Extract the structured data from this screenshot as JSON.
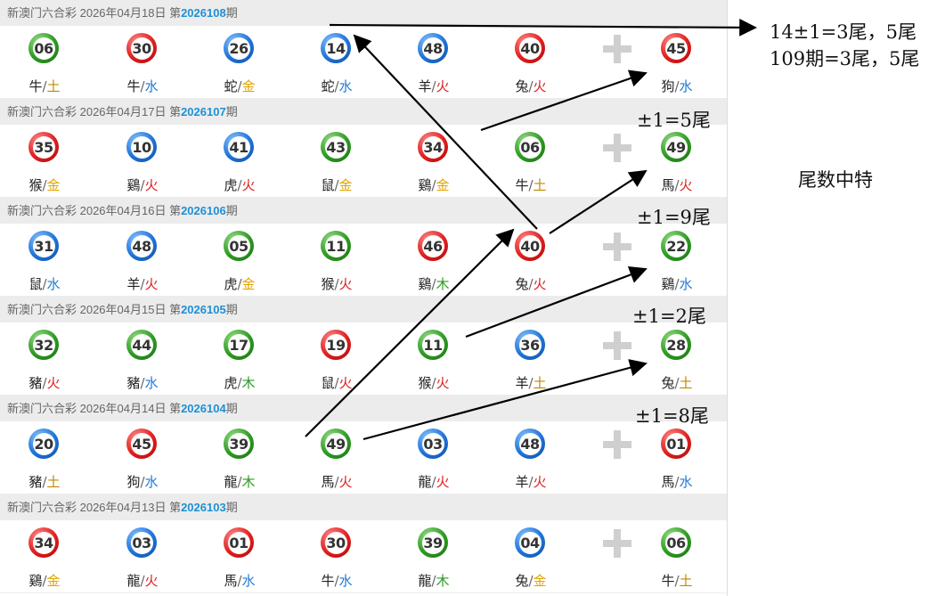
{
  "draws": [
    {
      "head_prefix": "新澳门六合彩 2026年04月18日 第",
      "issue": "2026108",
      "head_suffix": "期",
      "balls": [
        {
          "num": "06",
          "color": "green",
          "zodiac": "牛",
          "element": "土"
        },
        {
          "num": "30",
          "color": "red",
          "zodiac": "牛",
          "element": "水"
        },
        {
          "num": "26",
          "color": "blue",
          "zodiac": "蛇",
          "element": "金"
        },
        {
          "num": "14",
          "color": "blue",
          "zodiac": "蛇",
          "element": "水"
        },
        {
          "num": "48",
          "color": "blue",
          "zodiac": "羊",
          "element": "火"
        },
        {
          "num": "40",
          "color": "red",
          "zodiac": "兔",
          "element": "火"
        },
        {
          "num": "45",
          "color": "red",
          "zodiac": "狗",
          "element": "水"
        }
      ]
    },
    {
      "head_prefix": "新澳门六合彩 2026年04月17日 第",
      "issue": "2026107",
      "head_suffix": "期",
      "balls": [
        {
          "num": "35",
          "color": "red",
          "zodiac": "猴",
          "element": "金"
        },
        {
          "num": "10",
          "color": "blue",
          "zodiac": "鷄",
          "element": "火"
        },
        {
          "num": "41",
          "color": "blue",
          "zodiac": "虎",
          "element": "火"
        },
        {
          "num": "43",
          "color": "green",
          "zodiac": "鼠",
          "element": "金"
        },
        {
          "num": "34",
          "color": "red",
          "zodiac": "鷄",
          "element": "金"
        },
        {
          "num": "06",
          "color": "green",
          "zodiac": "牛",
          "element": "土"
        },
        {
          "num": "49",
          "color": "green",
          "zodiac": "馬",
          "element": "火"
        }
      ]
    },
    {
      "head_prefix": "新澳门六合彩 2026年04月16日 第",
      "issue": "2026106",
      "head_suffix": "期",
      "balls": [
        {
          "num": "31",
          "color": "blue",
          "zodiac": "鼠",
          "element": "水"
        },
        {
          "num": "48",
          "color": "blue",
          "zodiac": "羊",
          "element": "火"
        },
        {
          "num": "05",
          "color": "green",
          "zodiac": "虎",
          "element": "金"
        },
        {
          "num": "11",
          "color": "green",
          "zodiac": "猴",
          "element": "火"
        },
        {
          "num": "46",
          "color": "red",
          "zodiac": "鷄",
          "element": "木"
        },
        {
          "num": "40",
          "color": "red",
          "zodiac": "兔",
          "element": "火"
        },
        {
          "num": "22",
          "color": "green",
          "zodiac": "鷄",
          "element": "水"
        }
      ]
    },
    {
      "head_prefix": "新澳门六合彩 2026年04月15日 第",
      "issue": "2026105",
      "head_suffix": "期",
      "balls": [
        {
          "num": "32",
          "color": "green",
          "zodiac": "豬",
          "element": "火"
        },
        {
          "num": "44",
          "color": "green",
          "zodiac": "豬",
          "element": "水"
        },
        {
          "num": "17",
          "color": "green",
          "zodiac": "虎",
          "element": "木"
        },
        {
          "num": "19",
          "color": "red",
          "zodiac": "鼠",
          "element": "火"
        },
        {
          "num": "11",
          "color": "green",
          "zodiac": "猴",
          "element": "火"
        },
        {
          "num": "36",
          "color": "blue",
          "zodiac": "羊",
          "element": "土"
        },
        {
          "num": "28",
          "color": "green",
          "zodiac": "兔",
          "element": "土"
        }
      ]
    },
    {
      "head_prefix": "新澳门六合彩 2026年04月14日 第",
      "issue": "2026104",
      "head_suffix": "期",
      "balls": [
        {
          "num": "20",
          "color": "blue",
          "zodiac": "豬",
          "element": "土"
        },
        {
          "num": "45",
          "color": "red",
          "zodiac": "狗",
          "element": "水"
        },
        {
          "num": "39",
          "color": "green",
          "zodiac": "龍",
          "element": "木"
        },
        {
          "num": "49",
          "color": "green",
          "zodiac": "馬",
          "element": "火"
        },
        {
          "num": "03",
          "color": "blue",
          "zodiac": "龍",
          "element": "火"
        },
        {
          "num": "48",
          "color": "blue",
          "zodiac": "羊",
          "element": "火"
        },
        {
          "num": "01",
          "color": "red",
          "zodiac": "馬",
          "element": "水"
        }
      ]
    },
    {
      "head_prefix": "新澳门六合彩 2026年04月13日 第",
      "issue": "2026103",
      "head_suffix": "期",
      "balls": [
        {
          "num": "34",
          "color": "red",
          "zodiac": "鷄",
          "element": "金"
        },
        {
          "num": "03",
          "color": "blue",
          "zodiac": "龍",
          "element": "火"
        },
        {
          "num": "01",
          "color": "red",
          "zodiac": "馬",
          "element": "水"
        },
        {
          "num": "30",
          "color": "red",
          "zodiac": "牛",
          "element": "水"
        },
        {
          "num": "39",
          "color": "green",
          "zodiac": "龍",
          "element": "木"
        },
        {
          "num": "04",
          "color": "blue",
          "zodiac": "兔",
          "element": "金"
        },
        {
          "num": "06",
          "color": "green",
          "zodiac": "牛",
          "element": "土"
        }
      ]
    }
  ],
  "annotations": {
    "top_line1": "14±1=3尾，5尾",
    "top_line2": "109期=3尾，5尾",
    "note_107": "±1=5尾",
    "note_106": "±1=9尾",
    "note_105": "±1=2尾",
    "note_104": "±1=8尾",
    "side_title": "尾数中特"
  },
  "colors": {
    "red": "#e02020",
    "blue": "#1f74d8",
    "green": "#2e9a22",
    "issue": "#1e90d6",
    "arrow": "#000000"
  },
  "icons": {
    "plus": "plus-icon",
    "arrow": "arrow-icon"
  }
}
